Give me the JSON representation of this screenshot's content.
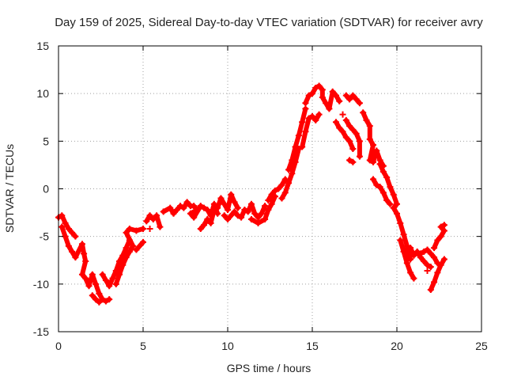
{
  "chart_data": {
    "type": "scatter",
    "title": "Day 159 of 2025, Sidereal Day-to-day VTEC variation (SDTVAR) for receiver avry",
    "xlabel": "GPS time / hours",
    "ylabel": "SDTVAR / TECUs",
    "xlim": [
      0,
      25
    ],
    "ylim": [
      -15,
      15
    ],
    "xticks": [
      0,
      5,
      10,
      15,
      20,
      25
    ],
    "yticks": [
      -15,
      -10,
      -5,
      0,
      5,
      10,
      15
    ],
    "xtick_labels": [
      "0",
      "5",
      "10",
      "15",
      "20",
      "25"
    ],
    "ytick_labels": [
      "-15",
      "-10",
      "-5",
      "0",
      "5",
      "10",
      "15"
    ],
    "grid": true,
    "marker": "+",
    "series": [
      {
        "name": "SDTVAR",
        "color": "#ff0000",
        "points": [
          [
            0.0,
            -3.0
          ],
          [
            0.2,
            -2.8
          ],
          [
            0.4,
            -3.6
          ],
          [
            0.6,
            -4.2
          ],
          [
            0.8,
            -4.6
          ],
          [
            1.0,
            -5.0
          ],
          [
            0.2,
            -4.0
          ],
          [
            0.4,
            -5.0
          ],
          [
            0.6,
            -6.0
          ],
          [
            0.8,
            -6.6
          ],
          [
            1.0,
            -7.2
          ],
          [
            1.4,
            -5.8
          ],
          [
            1.5,
            -6.8
          ],
          [
            1.6,
            -7.6
          ],
          [
            1.4,
            -9.0
          ],
          [
            1.6,
            -9.4
          ],
          [
            1.8,
            -10.2
          ],
          [
            2.0,
            -9.0
          ],
          [
            2.2,
            -10.0
          ],
          [
            2.4,
            -11.0
          ],
          [
            2.6,
            -11.6
          ],
          [
            2.8,
            -11.8
          ],
          [
            3.0,
            -11.6
          ],
          [
            2.0,
            -11.2
          ],
          [
            2.2,
            -11.6
          ],
          [
            2.4,
            -11.9
          ],
          [
            2.6,
            -9.0
          ],
          [
            2.8,
            -9.6
          ],
          [
            3.0,
            -10.2
          ],
          [
            3.2,
            -9.4
          ],
          [
            3.4,
            -8.6
          ],
          [
            3.6,
            -7.6
          ],
          [
            3.8,
            -7.0
          ],
          [
            4.0,
            -6.2
          ],
          [
            4.2,
            -5.4
          ],
          [
            3.4,
            -10.0
          ],
          [
            3.6,
            -9.0
          ],
          [
            3.8,
            -8.0
          ],
          [
            4.0,
            -7.2
          ],
          [
            4.2,
            -6.6
          ],
          [
            4.4,
            -6.0
          ],
          [
            4.0,
            -4.6
          ],
          [
            4.2,
            -4.2
          ],
          [
            4.6,
            -4.4
          ],
          [
            5.0,
            -4.2
          ],
          [
            4.6,
            -6.4
          ],
          [
            5.0,
            -5.6
          ],
          [
            5.2,
            -3.4
          ],
          [
            5.4,
            -2.8
          ],
          [
            5.6,
            -3.2
          ],
          [
            5.8,
            -2.8
          ],
          [
            6.0,
            -4.0
          ],
          [
            5.4,
            -4.2
          ],
          [
            6.2,
            -2.4
          ],
          [
            6.6,
            -2.0
          ],
          [
            6.8,
            -2.6
          ],
          [
            7.0,
            -2.2
          ],
          [
            7.2,
            -1.8
          ],
          [
            7.4,
            -2.0
          ],
          [
            7.6,
            -1.4
          ],
          [
            7.8,
            -1.8
          ],
          [
            8.0,
            -1.8
          ],
          [
            8.2,
            -2.2
          ],
          [
            7.8,
            -2.6
          ],
          [
            8.0,
            -3.0
          ],
          [
            8.4,
            -1.8
          ],
          [
            8.6,
            -2.0
          ],
          [
            8.8,
            -2.2
          ],
          [
            9.0,
            -2.8
          ],
          [
            9.2,
            -1.6
          ],
          [
            9.4,
            -2.6
          ],
          [
            8.4,
            -4.2
          ],
          [
            8.6,
            -3.8
          ],
          [
            8.8,
            -3.2
          ],
          [
            9.0,
            -3.6
          ],
          [
            9.2,
            -2.2
          ],
          [
            9.4,
            -2.0
          ],
          [
            9.6,
            -1.0
          ],
          [
            9.8,
            -1.6
          ],
          [
            10.0,
            -2.2
          ],
          [
            10.2,
            -0.6
          ],
          [
            10.4,
            -1.4
          ],
          [
            10.6,
            -2.0
          ],
          [
            9.8,
            -2.8
          ],
          [
            10.0,
            -3.2
          ],
          [
            10.4,
            -2.4
          ],
          [
            10.6,
            -2.8
          ],
          [
            10.8,
            -3.0
          ],
          [
            11.0,
            -2.2
          ],
          [
            11.2,
            -2.4
          ],
          [
            11.4,
            -1.6
          ],
          [
            11.6,
            -2.6
          ],
          [
            11.8,
            -3.0
          ],
          [
            12.0,
            -2.6
          ],
          [
            12.2,
            -1.8
          ],
          [
            11.4,
            -3.2
          ],
          [
            11.8,
            -3.6
          ],
          [
            12.2,
            -3.2
          ],
          [
            12.4,
            -2.2
          ],
          [
            12.6,
            -1.6
          ],
          [
            12.8,
            -0.8
          ],
          [
            12.4,
            -1.2
          ],
          [
            12.6,
            -0.6
          ],
          [
            12.8,
            -0.2
          ],
          [
            13.0,
            0.0
          ],
          [
            13.2,
            0.4
          ],
          [
            13.4,
            1.0
          ],
          [
            13.2,
            -1.0
          ],
          [
            13.4,
            -0.4
          ],
          [
            13.6,
            0.6
          ],
          [
            13.8,
            1.6
          ],
          [
            14.0,
            2.8
          ],
          [
            14.2,
            4.2
          ],
          [
            13.6,
            2.0
          ],
          [
            13.8,
            3.0
          ],
          [
            14.0,
            4.4
          ],
          [
            14.2,
            5.6
          ],
          [
            14.4,
            7.0
          ],
          [
            14.6,
            8.4
          ],
          [
            14.4,
            4.4
          ],
          [
            14.6,
            6.0
          ],
          [
            14.8,
            7.4
          ],
          [
            15.0,
            7.6
          ],
          [
            15.2,
            7.2
          ],
          [
            15.4,
            7.8
          ],
          [
            14.6,
            9.0
          ],
          [
            14.8,
            9.8
          ],
          [
            15.0,
            10.0
          ],
          [
            15.2,
            10.6
          ],
          [
            15.4,
            10.8
          ],
          [
            15.6,
            10.4
          ],
          [
            15.6,
            9.6
          ],
          [
            15.8,
            9.0
          ],
          [
            16.0,
            8.4
          ],
          [
            16.2,
            10.2
          ],
          [
            16.4,
            9.8
          ],
          [
            16.6,
            9.2
          ],
          [
            16.4,
            7.0
          ],
          [
            16.6,
            6.4
          ],
          [
            16.8,
            6.0
          ],
          [
            17.0,
            5.4
          ],
          [
            17.2,
            5.0
          ],
          [
            17.4,
            4.2
          ],
          [
            17.0,
            7.2
          ],
          [
            17.2,
            6.6
          ],
          [
            17.4,
            6.2
          ],
          [
            17.6,
            5.8
          ],
          [
            17.8,
            5.0
          ],
          [
            17.8,
            3.4
          ],
          [
            16.8,
            7.8
          ],
          [
            17.0,
            9.8
          ],
          [
            17.2,
            9.4
          ],
          [
            17.4,
            9.8
          ],
          [
            17.6,
            9.4
          ],
          [
            17.8,
            9.0
          ],
          [
            17.2,
            3.0
          ],
          [
            17.4,
            2.8
          ],
          [
            18.0,
            8.0
          ],
          [
            18.2,
            7.2
          ],
          [
            18.4,
            6.6
          ],
          [
            18.4,
            5.2
          ],
          [
            18.6,
            4.6
          ],
          [
            18.4,
            3.0
          ],
          [
            18.6,
            2.8
          ],
          [
            18.8,
            4.0
          ],
          [
            19.0,
            3.0
          ],
          [
            19.2,
            2.4
          ],
          [
            18.6,
            1.0
          ],
          [
            18.8,
            0.4
          ],
          [
            19.0,
            0.2
          ],
          [
            19.2,
            -0.4
          ],
          [
            19.4,
            -1.2
          ],
          [
            19.6,
            -1.6
          ],
          [
            19.0,
            2.6
          ],
          [
            19.2,
            1.8
          ],
          [
            19.4,
            1.2
          ],
          [
            19.6,
            0.2
          ],
          [
            19.8,
            -0.6
          ],
          [
            20.0,
            -1.6
          ],
          [
            19.8,
            -2.0
          ],
          [
            20.0,
            -2.6
          ],
          [
            20.2,
            -3.6
          ],
          [
            20.4,
            -4.8
          ],
          [
            20.6,
            -6.0
          ],
          [
            20.8,
            -7.4
          ],
          [
            20.2,
            -5.4
          ],
          [
            20.4,
            -6.6
          ],
          [
            20.6,
            -7.8
          ],
          [
            20.8,
            -8.8
          ],
          [
            21.0,
            -9.4
          ],
          [
            20.8,
            -6.2
          ],
          [
            21.0,
            -7.0
          ],
          [
            21.2,
            -6.6
          ],
          [
            21.4,
            -7.2
          ],
          [
            21.6,
            -7.6
          ],
          [
            21.8,
            -8.0
          ],
          [
            22.0,
            -8.2
          ],
          [
            21.4,
            -6.8
          ],
          [
            21.6,
            -6.6
          ],
          [
            21.8,
            -6.4
          ],
          [
            22.0,
            -6.8
          ],
          [
            22.2,
            -7.2
          ],
          [
            22.4,
            -7.8
          ],
          [
            21.8,
            -8.6
          ],
          [
            22.0,
            -10.6
          ],
          [
            22.2,
            -9.8
          ],
          [
            22.4,
            -8.8
          ],
          [
            22.6,
            -8.0
          ],
          [
            22.8,
            -7.4
          ],
          [
            22.2,
            -6.2
          ],
          [
            22.4,
            -5.4
          ],
          [
            22.6,
            -5.0
          ],
          [
            22.8,
            -4.4
          ],
          [
            22.6,
            -4.0
          ],
          [
            22.8,
            -3.8
          ]
        ]
      }
    ]
  }
}
